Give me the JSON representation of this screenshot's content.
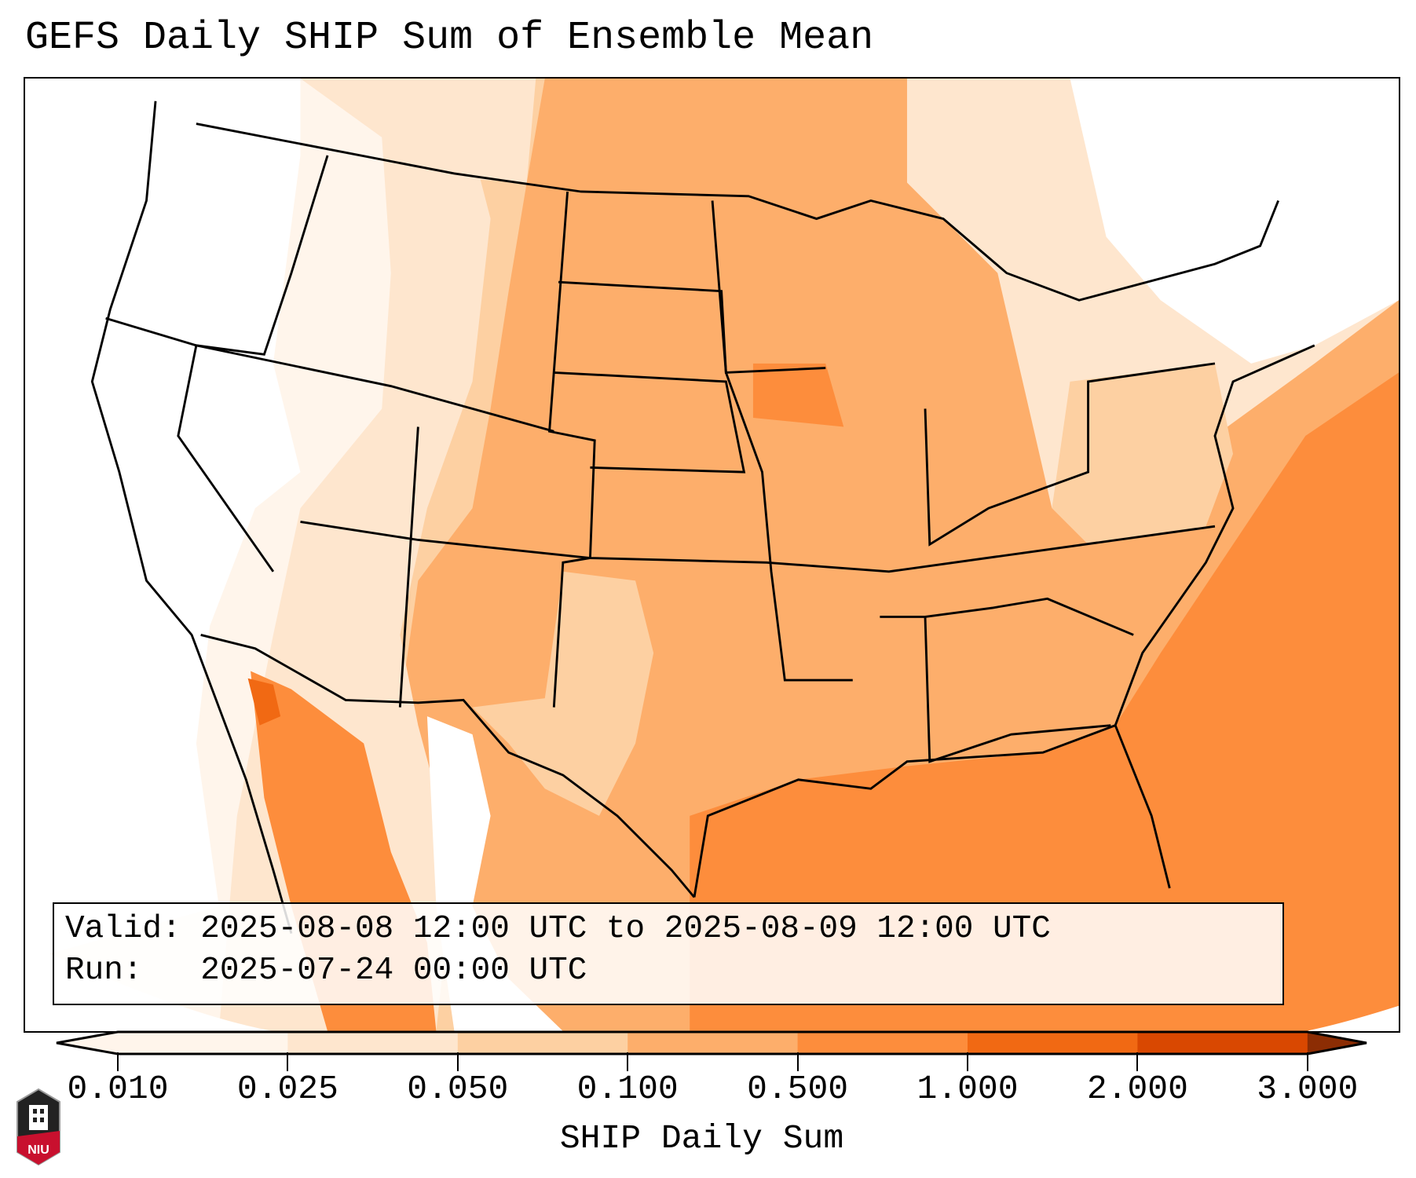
{
  "title": "GEFS Daily SHIP Sum of Ensemble Mean",
  "info": {
    "valid_line": "Valid: 2025-08-08 12:00 UTC to 2025-08-09 12:00 UTC",
    "run_line": "Run:   2025-07-24 00:00 UTC"
  },
  "colorbar": {
    "label": "SHIP Daily Sum",
    "ticks": [
      "0.010",
      "0.025",
      "0.050",
      "0.100",
      "0.500",
      "1.000",
      "2.000",
      "3.000"
    ],
    "colors": [
      "#fff5eb",
      "#fee6ce",
      "#fdd0a2",
      "#fdae6b",
      "#fd8d3c",
      "#f16913",
      "#d94801",
      "#8c2d04"
    ],
    "extend": "both"
  },
  "logo": {
    "text": "NIU"
  }
}
